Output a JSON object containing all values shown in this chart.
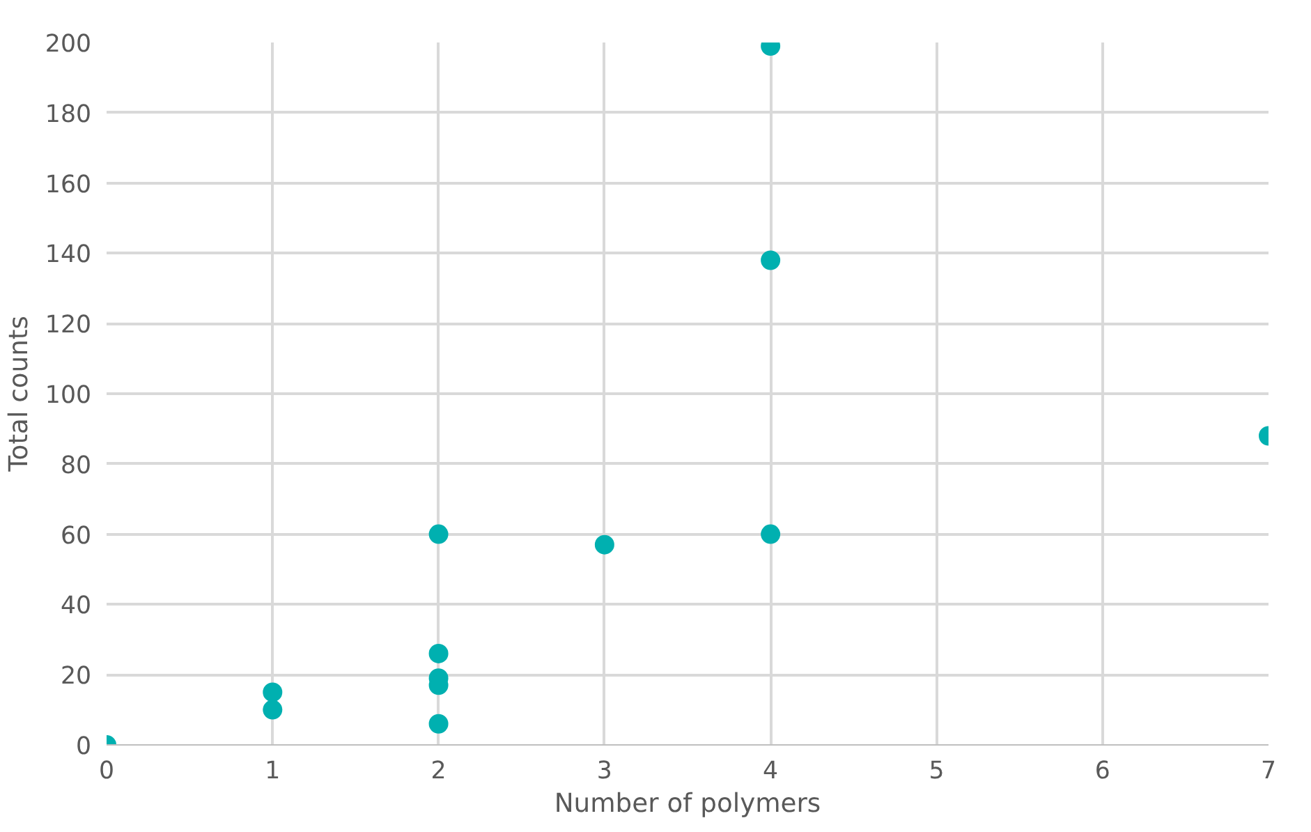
{
  "chart_data": {
    "type": "scatter",
    "xlabel": "Number of polymers",
    "ylabel": "Total counts",
    "x": [
      0,
      1,
      1,
      2,
      2,
      2,
      2,
      2,
      3,
      4,
      4,
      4,
      7
    ],
    "series": [
      {
        "color": "#00b0b0",
        "values": [
          0,
          15,
          10,
          60,
          26,
          19,
          17,
          6,
          57,
          199,
          138,
          60,
          88
        ]
      }
    ],
    "xlim": [
      0,
      7
    ],
    "ylim": [
      0,
      200
    ],
    "xticks": [
      0,
      1,
      2,
      3,
      4,
      5,
      6,
      7
    ],
    "yticks": [
      0,
      20,
      40,
      60,
      80,
      100,
      120,
      140,
      160,
      180,
      200
    ],
    "grid": true,
    "marker": "circle"
  }
}
